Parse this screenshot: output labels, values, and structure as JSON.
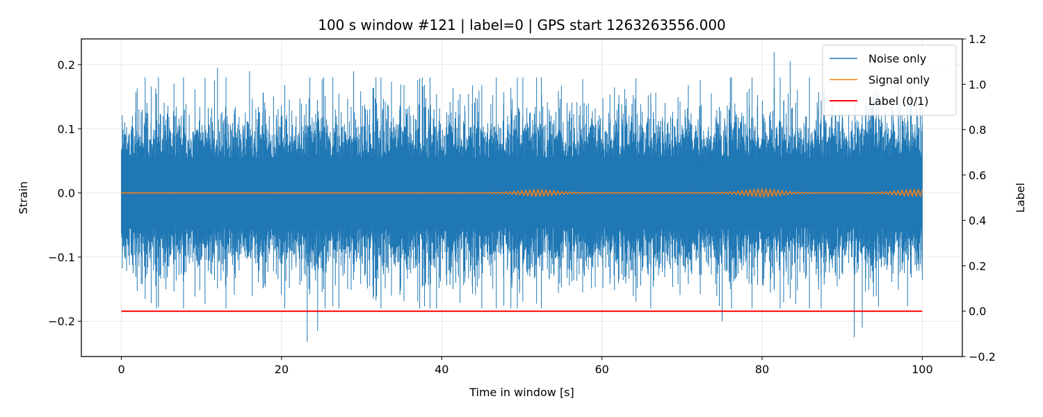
{
  "chart_data": {
    "type": "line",
    "title": "100 s window #121 | label=0 | GPS start 1263263556.000",
    "xlabel": "Time in window [s]",
    "ylabel": "Strain",
    "y2label": "Label",
    "xlim": [
      -5,
      105
    ],
    "ylim": [
      -0.255,
      0.24
    ],
    "y2lim": [
      -0.2,
      1.2
    ],
    "xticks": [
      0,
      20,
      40,
      60,
      80,
      100
    ],
    "xtick_labels": [
      "0",
      "20",
      "40",
      "60",
      "80",
      "100"
    ],
    "yticks": [
      0.2,
      0.1,
      0.0,
      -0.1,
      -0.2
    ],
    "ytick_labels": [
      "0.2",
      "0.1",
      "0.0",
      "−0.1",
      "−0.2"
    ],
    "y2ticks": [
      1.2,
      1.0,
      0.8,
      0.6,
      0.4,
      0.2,
      0.0,
      -0.2
    ],
    "y2tick_labels": [
      "1.2",
      "1.0",
      "0.8",
      "0.6",
      "0.4",
      "0.2",
      "0.0",
      "−0.2"
    ],
    "grid": true,
    "legend_position": "top-right",
    "noise": {
      "name": "Noise only",
      "color": "#1f77b4",
      "x_range": [
        0,
        100
      ],
      "typical_amplitude": 0.09,
      "peaks": [
        {
          "x": 12.0,
          "y": 0.195
        },
        {
          "x": 16.0,
          "y": 0.19
        },
        {
          "x": 29.0,
          "y": 0.19
        },
        {
          "x": 81.5,
          "y": 0.22
        },
        {
          "x": 83.5,
          "y": 0.205
        },
        {
          "x": 23.2,
          "y": -0.232
        },
        {
          "x": 24.5,
          "y": -0.215
        },
        {
          "x": 91.5,
          "y": -0.225
        },
        {
          "x": 92.5,
          "y": -0.21
        },
        {
          "x": 75.0,
          "y": -0.2
        }
      ]
    },
    "signal": {
      "name": "Signal only",
      "color": "#ff7f0e",
      "x_range": [
        0,
        100
      ],
      "bursts": [
        {
          "x": 52,
          "amplitude": 0.004
        },
        {
          "x": 80,
          "amplitude": 0.005
        },
        {
          "x": 99,
          "amplitude": 0.004
        }
      ]
    },
    "label_series": {
      "name": "Label (0/1)",
      "color": "#ff0000",
      "x": [
        0,
        100
      ],
      "y": [
        0,
        0
      ]
    }
  }
}
